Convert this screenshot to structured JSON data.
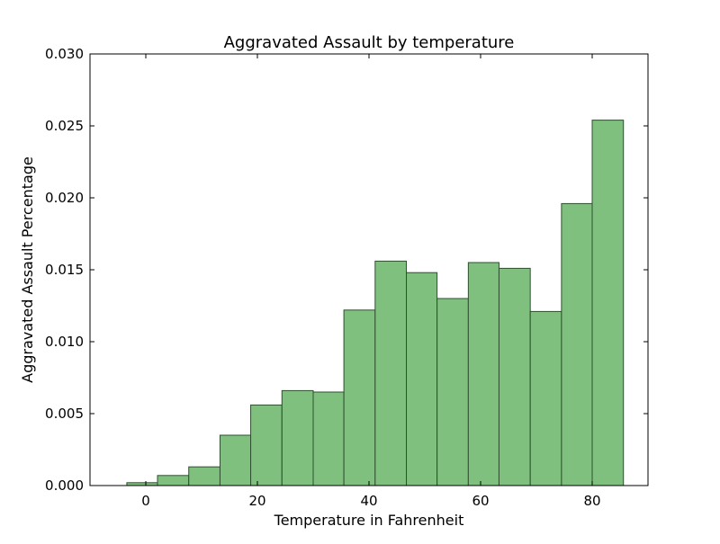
{
  "chart_data": {
    "type": "bar",
    "title": "Aggravated Assault by temperature",
    "xlabel": "Temperature in Fahrenheit",
    "ylabel": "Aggravated Assault Percentage",
    "xlim": [
      -10,
      90
    ],
    "ylim": [
      0,
      0.03
    ],
    "xticks": [
      0,
      20,
      40,
      60,
      80
    ],
    "xtick_labels": [
      "0",
      "20",
      "40",
      "60",
      "80"
    ],
    "yticks": [
      0.0,
      0.005,
      0.01,
      0.015,
      0.02,
      0.025,
      0.03
    ],
    "ytick_labels": [
      "0.000",
      "0.005",
      "0.010",
      "0.015",
      "0.020",
      "0.025",
      "0.030"
    ],
    "grid": false,
    "bar_color": "#7fc07f",
    "bar_edge_color": "#2f4f2f",
    "bins": [
      {
        "x0": -3.4,
        "x1": 2.1,
        "value": 0.0002
      },
      {
        "x0": 2.1,
        "x1": 7.7,
        "value": 0.0007
      },
      {
        "x0": 7.7,
        "x1": 13.3,
        "value": 0.0013
      },
      {
        "x0": 13.3,
        "x1": 18.8,
        "value": 0.0035
      },
      {
        "x0": 18.8,
        "x1": 24.4,
        "value": 0.0056
      },
      {
        "x0": 24.4,
        "x1": 30.0,
        "value": 0.0066
      },
      {
        "x0": 30.0,
        "x1": 35.5,
        "value": 0.0065
      },
      {
        "x0": 35.5,
        "x1": 41.1,
        "value": 0.0122
      },
      {
        "x0": 41.1,
        "x1": 46.7,
        "value": 0.0156
      },
      {
        "x0": 46.7,
        "x1": 52.2,
        "value": 0.0148
      },
      {
        "x0": 52.2,
        "x1": 57.8,
        "value": 0.013
      },
      {
        "x0": 57.8,
        "x1": 63.3,
        "value": 0.0155
      },
      {
        "x0": 63.3,
        "x1": 68.9,
        "value": 0.0151
      },
      {
        "x0": 68.9,
        "x1": 74.5,
        "value": 0.0121
      },
      {
        "x0": 74.5,
        "x1": 80.0,
        "value": 0.0196
      },
      {
        "x0": 80.0,
        "x1": 85.6,
        "value": 0.0254
      }
    ]
  }
}
